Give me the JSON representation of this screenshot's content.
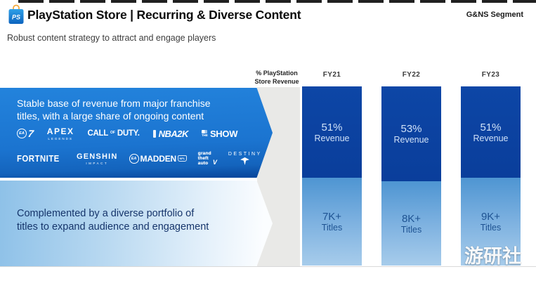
{
  "header": {
    "store_icon_glyph": "PS",
    "title": "PlayStation Store | Recurring & Diverse Content",
    "segment": "G&NS Segment",
    "subtitle": "Robust content strategy to attract and engage players"
  },
  "banner_top": {
    "line1": "Stable base of revenue from major franchise",
    "line2": "titles, with a large share of ongoing content",
    "logos_row1": [
      {
        "name": "ea-sports-fc",
        "parts": {
          "badge": "EA",
          "mark": "7"
        }
      },
      {
        "name": "apex-legends",
        "parts": {
          "main": "APEX",
          "sub": "LEGENDS"
        }
      },
      {
        "name": "call-of-duty",
        "parts": {
          "a": "CALL",
          "of": "OF",
          "b": "DUTY."
        }
      },
      {
        "name": "nba-2k",
        "parts": {
          "main": "NBA2K"
        }
      },
      {
        "name": "mlb-the-show",
        "parts": {
          "the": "THE",
          "main": "SHOW"
        }
      }
    ],
    "logos_row2": [
      {
        "name": "fortnite",
        "parts": {
          "main": "FORTNITE"
        }
      },
      {
        "name": "genshin-impact",
        "parts": {
          "main": "GENSHIN",
          "sub": "IMPACT"
        }
      },
      {
        "name": "madden-nfl",
        "parts": {
          "badge": "EA",
          "main": "MADDEN"
        }
      },
      {
        "name": "grand-theft-auto",
        "parts": {
          "l1": "grand",
          "l2": "theft",
          "l3": "auto",
          "mark": "V"
        }
      },
      {
        "name": "destiny",
        "parts": {
          "main": "DESTINY"
        }
      }
    ]
  },
  "banner_bottom": {
    "line1": "Complemented by a diverse portfolio of",
    "line2": "titles to expand audience and engagement"
  },
  "chart": {
    "header_line1": "% PlayStation",
    "header_line2": "Store Revenue",
    "columns": [
      {
        "year": "FY21",
        "revenue_value": "51%",
        "revenue_word": "Revenue",
        "revenue_pct": 51,
        "titles_value": "7K+",
        "titles_word": "Titles"
      },
      {
        "year": "FY22",
        "revenue_value": "53%",
        "revenue_word": "Revenue",
        "revenue_pct": 53,
        "titles_value": "8K+",
        "titles_word": "Titles"
      },
      {
        "year": "FY23",
        "revenue_value": "51%",
        "revenue_word": "Revenue",
        "revenue_pct": 51,
        "titles_value": "9K+",
        "titles_word": "Titles"
      }
    ]
  },
  "chart_data": {
    "type": "bar",
    "categories": [
      "FY21",
      "FY22",
      "FY23"
    ],
    "series": [
      {
        "name": "% PlayStation Store Revenue from major franchise titles",
        "values": [
          51,
          53,
          51
        ],
        "unit": "%"
      },
      {
        "name": "Titles in diverse portfolio",
        "values": [
          "7K+",
          "8K+",
          "9K+"
        ]
      }
    ],
    "title": "PlayStation Store | Recurring & Diverse Content",
    "legend_position": "none",
    "notes": "Stacked columns: dark segment = % of PlayStation Store revenue from major franchises; light segment labeled with catalog title counts"
  },
  "watermark": "游研社",
  "colors": {
    "banner_blue": "#1b74d0",
    "bar_dark_blue": "#0a3e9b",
    "bar_light_blue": "#7db1e0",
    "navy_text": "#16356b",
    "gray_band": "#e9e9e7",
    "bag_icon_blue": "#0d82d8",
    "bag_handle_orange": "#f2a93b"
  }
}
